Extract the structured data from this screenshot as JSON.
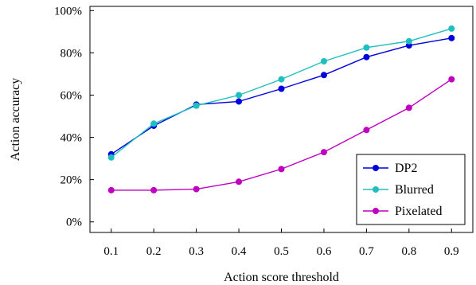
{
  "chart_data": {
    "type": "line",
    "xlabel": "Action score threshold",
    "ylabel": "Action accuracy",
    "x": [
      0.1,
      0.2,
      0.3,
      0.4,
      0.5,
      0.6,
      0.7,
      0.8,
      0.9
    ],
    "x_tick_labels": [
      "0.1",
      "0.2",
      "0.3",
      "0.4",
      "0.5",
      "0.6",
      "0.7",
      "0.8",
      "0.9"
    ],
    "xlim": [
      0.05,
      0.95
    ],
    "ylim": [
      -5,
      102
    ],
    "y_ticks": [
      0,
      20,
      40,
      60,
      80,
      100
    ],
    "y_tick_labels": [
      "0%",
      "20%",
      "40%",
      "60%",
      "80%",
      "100%"
    ],
    "grid": false,
    "legend_position": "bottom-right",
    "series": [
      {
        "name": "DP2",
        "color": "#0000dd",
        "values": [
          32,
          45.5,
          55.5,
          57,
          63,
          69.5,
          78,
          83.5,
          87
        ]
      },
      {
        "name": "Blurred",
        "color": "#1fbfbf",
        "values": [
          30.5,
          46.5,
          55,
          60,
          67.5,
          76,
          82.5,
          85.5,
          91.5
        ]
      },
      {
        "name": "Pixelated",
        "color": "#bf00bf",
        "values": [
          15,
          15,
          15.5,
          19,
          25,
          33,
          43.5,
          54,
          67.5
        ]
      }
    ]
  }
}
